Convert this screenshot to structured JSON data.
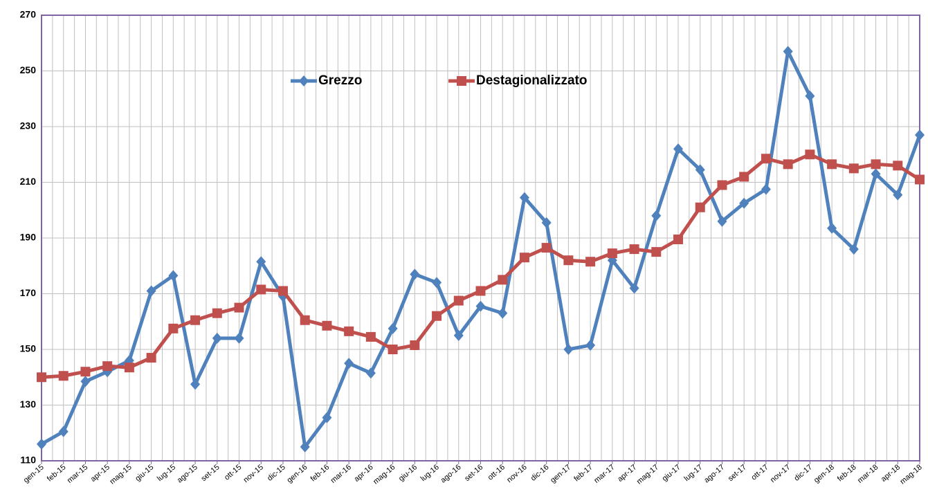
{
  "chart_data": {
    "type": "line",
    "categories": [
      "gen-15",
      "feb-15",
      "mar-15",
      "apr-15",
      "mag-15",
      "giu-15",
      "lug-15",
      "ago-15",
      "set-15",
      "ott-15",
      "nov-15",
      "dic-15",
      "gen-16",
      "feb-16",
      "mar-16",
      "apr-16",
      "mag-16",
      "giu-16",
      "lug-16",
      "ago-16",
      "set-16",
      "ott-16",
      "nov-16",
      "dic-16",
      "gen-17",
      "feb-17",
      "mar-17",
      "apr-17",
      "mag-17",
      "giu-17",
      "lug-17",
      "ago-17",
      "set-17",
      "ott-17",
      "nov-17",
      "dic-17",
      "gen-18",
      "feb-18",
      "mar-18",
      "apr-18",
      "mag-18"
    ],
    "series": [
      {
        "name": "Grezzo",
        "color": "#4f81bd",
        "marker": "diamond",
        "values": [
          116,
          120.5,
          138.5,
          142,
          146,
          171,
          176.5,
          137.5,
          154,
          154,
          181.5,
          169,
          115,
          125.5,
          145,
          141.5,
          157.5,
          177,
          174,
          155,
          165.5,
          163,
          204.5,
          195.5,
          150,
          151.5,
          182,
          172,
          198,
          222,
          214.5,
          196,
          202.5,
          207.5,
          257,
          241,
          193.5,
          186,
          213,
          205.5,
          227
        ]
      },
      {
        "name": "Destagionalizzato",
        "color": "#c0504d",
        "marker": "square",
        "values": [
          140,
          140.5,
          142,
          144,
          143.5,
          147,
          157.5,
          160.5,
          163,
          165,
          171.5,
          171,
          160.5,
          158.5,
          156.5,
          154.5,
          150,
          151.5,
          162,
          167.5,
          171,
          175,
          183,
          186.5,
          182,
          181.5,
          184.5,
          186,
          185,
          189.5,
          201,
          209,
          212,
          218.5,
          216.5,
          220,
          216.5,
          215,
          216.5,
          216,
          211
        ]
      }
    ],
    "ylim": [
      110,
      270
    ],
    "yticks": [
      110,
      130,
      150,
      170,
      190,
      210,
      230,
      250,
      270
    ],
    "grid": true
  }
}
